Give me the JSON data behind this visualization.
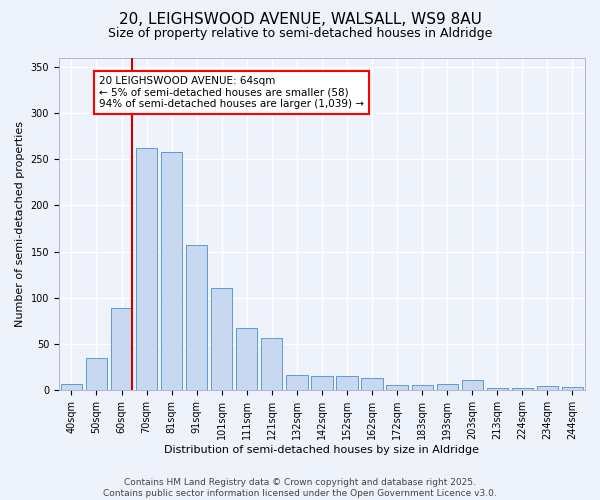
{
  "title_line1": "20, LEIGHSWOOD AVENUE, WALSALL, WS9 8AU",
  "title_line2": "Size of property relative to semi-detached houses in Aldridge",
  "xlabel": "Distribution of semi-detached houses by size in Aldridge",
  "ylabel": "Number of semi-detached properties",
  "categories": [
    "40sqm",
    "50sqm",
    "60sqm",
    "70sqm",
    "81sqm",
    "91sqm",
    "101sqm",
    "111sqm",
    "121sqm",
    "132sqm",
    "142sqm",
    "152sqm",
    "162sqm",
    "172sqm",
    "183sqm",
    "193sqm",
    "203sqm",
    "213sqm",
    "224sqm",
    "234sqm",
    "244sqm"
  ],
  "values": [
    7,
    35,
    89,
    262,
    258,
    157,
    111,
    67,
    57,
    17,
    15,
    16,
    13,
    6,
    6,
    7,
    11,
    2,
    2,
    5,
    4
  ],
  "bar_color": "#c8d8f0",
  "bar_edge_color": "#5b9bd5",
  "red_line_color": "#cc0000",
  "annotation_text": "20 LEIGHSWOOD AVENUE: 64sqm\n← 5% of semi-detached houses are smaller (58)\n94% of semi-detached houses are larger (1,039) →",
  "annotation_box_color": "white",
  "annotation_box_edge_color": "red",
  "ylim": [
    0,
    360
  ],
  "yticks": [
    0,
    50,
    100,
    150,
    200,
    250,
    300,
    350
  ],
  "bg_color": "#eef2fb",
  "grid_color": "white",
  "footer_text": "Contains HM Land Registry data © Crown copyright and database right 2025.\nContains public sector information licensed under the Open Government Licence v3.0.",
  "title_fontsize": 11,
  "subtitle_fontsize": 9,
  "axis_label_fontsize": 8,
  "tick_fontsize": 7,
  "annotation_fontsize": 7.5,
  "footer_fontsize": 6.5
}
